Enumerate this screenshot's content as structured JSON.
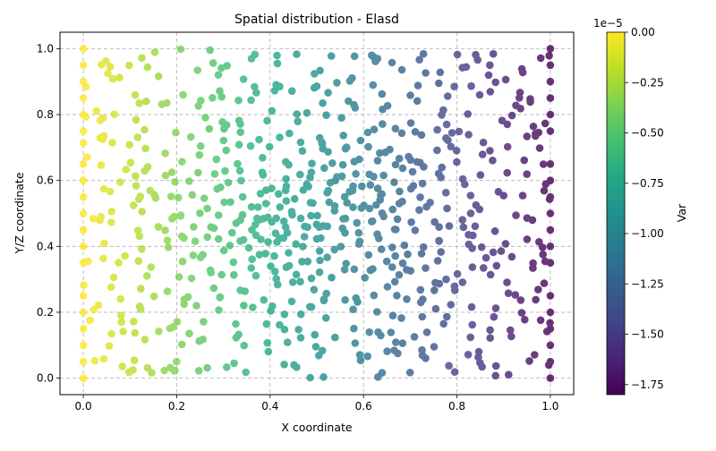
{
  "chart_data": {
    "type": "scatter",
    "title": "Spatial distribution - Elasd",
    "xlabel": "X coordinate",
    "ylabel": "Y/Z coordinate",
    "xlim": [
      -0.05,
      1.05
    ],
    "ylim": [
      -0.05,
      1.05
    ],
    "xticks": [
      "0.0",
      "0.2",
      "0.4",
      "0.6",
      "0.8",
      "1.0"
    ],
    "yticks": [
      "0.0",
      "0.2",
      "0.4",
      "0.6",
      "0.8",
      "1.0"
    ],
    "grid": true,
    "grid_style": "dashed",
    "colormap": "viridis",
    "marker_alpha": 0.8,
    "colorbar": {
      "label": "Var",
      "range": [
        -1.8,
        0.0
      ],
      "ticks": [
        "0.00",
        "−0.25",
        "−0.50",
        "−0.75",
        "−1.00",
        "−1.25",
        "−1.50",
        "−1.75"
      ],
      "offset_text": "1e−5",
      "scale_factor": 1e-05
    },
    "point_generation": {
      "description": "Approximately 1000 points in the unit square forming radial clusters around two centers; color value decreases from about 0 on the left edge to about -1.8 on the right edge.",
      "cluster_centers": [
        [
          0.4,
          0.45
        ],
        [
          0.6,
          0.55
        ]
      ],
      "boundary_columns_x": [
        0.0,
        1.0
      ],
      "boundary_values_left": 0.0,
      "boundary_values_right": -1.8
    }
  }
}
